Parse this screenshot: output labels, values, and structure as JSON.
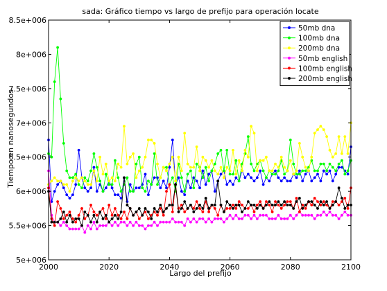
{
  "chart_data": {
    "type": "line",
    "title": "sada: Gráfico tiempo vs largo de prefijo para operación locate",
    "xlabel": "Largo del prefijo",
    "ylabel": "Tiempo en nanosegundos",
    "xlim": [
      2000,
      2100
    ],
    "ylim": [
      5000000,
      8500000
    ],
    "xticks": [
      2000,
      2020,
      2040,
      2060,
      2080,
      2100
    ],
    "yticks": [
      5000000,
      5500000,
      6000000,
      6500000,
      7000000,
      7500000,
      8000000,
      8500000
    ],
    "xtick_labels": [
      "2000",
      "2020",
      "2040",
      "2060",
      "2080",
      "2100"
    ],
    "ytick_labels": [
      "5e+006",
      "5.5e+006",
      "6e+006",
      "6.5e+006",
      "7e+006",
      "7.5e+006",
      "8e+006",
      "8.5e+006"
    ],
    "legend_position": "top-right",
    "grid": false,
    "x": [
      2000,
      2001,
      2002,
      2003,
      2004,
      2005,
      2006,
      2007,
      2008,
      2009,
      2010,
      2011,
      2012,
      2013,
      2014,
      2015,
      2016,
      2017,
      2018,
      2019,
      2020,
      2021,
      2022,
      2023,
      2024,
      2025,
      2026,
      2027,
      2028,
      2029,
      2030,
      2031,
      2032,
      2033,
      2034,
      2035,
      2036,
      2037,
      2038,
      2039,
      2040,
      2041,
      2042,
      2043,
      2044,
      2045,
      2046,
      2047,
      2048,
      2049,
      2050,
      2051,
      2052,
      2053,
      2054,
      2055,
      2056,
      2057,
      2058,
      2059,
      2060,
      2061,
      2062,
      2063,
      2064,
      2065,
      2066,
      2067,
      2068,
      2069,
      2070,
      2071,
      2072,
      2073,
      2074,
      2075,
      2076,
      2077,
      2078,
      2079,
      2080,
      2081,
      2082,
      2083,
      2084,
      2085,
      2086,
      2087,
      2088,
      2089,
      2090,
      2091,
      2092,
      2093,
      2094,
      2095,
      2096,
      2097,
      2098,
      2099,
      2100
    ],
    "series": [
      {
        "name": "50mb dna",
        "color": "#0000ff",
        "values": [
          6750000,
          5850000,
          6000000,
          6100000,
          6150000,
          6050000,
          5950000,
          5900000,
          5950000,
          6100000,
          6600000,
          6200000,
          6050000,
          6000000,
          6050000,
          6350000,
          6000000,
          6100000,
          6000000,
          6050000,
          6150000,
          6050000,
          5950000,
          5950000,
          5900000,
          6200000,
          5850000,
          6100000,
          6000000,
          6050000,
          6050000,
          6100000,
          6250000,
          5950000,
          6100000,
          6200000,
          6200000,
          6050000,
          6150000,
          6050000,
          6350000,
          6750000,
          6100000,
          6200000,
          6000000,
          5950000,
          6150000,
          6050000,
          6200000,
          6150000,
          6050000,
          6300000,
          6100000,
          6250000,
          6300000,
          6000000,
          6150000,
          6250000,
          6300000,
          6100000,
          6150000,
          6100000,
          6200000,
          6150000,
          6300000,
          6200000,
          6250000,
          6200000,
          6150000,
          6200000,
          6300000,
          6100000,
          6200000,
          6150000,
          6250000,
          6300000,
          6200000,
          6150000,
          6200000,
          6150000,
          6150000,
          6250000,
          6200000,
          6300000,
          6150000,
          6250000,
          6300000,
          6150000,
          6200000,
          6250000,
          6150000,
          6300000,
          6250000,
          6300000,
          6150000,
          6250000,
          6350000,
          6350000,
          6300000,
          6250000,
          6650000
        ]
      },
      {
        "name": "100mb dna",
        "color": "#00ff00",
        "values": [
          6550000,
          6500000,
          7600000,
          8100000,
          7350000,
          6700000,
          6300000,
          6200000,
          6200000,
          6250000,
          6100000,
          6050000,
          6200000,
          6150000,
          6300000,
          6550000,
          6350000,
          6150000,
          6000000,
          6250000,
          6100000,
          6100000,
          6450000,
          6200000,
          6000000,
          6100000,
          6200000,
          6000000,
          6000000,
          6400000,
          6500000,
          6050000,
          6000000,
          6150000,
          6100000,
          6550000,
          6100000,
          6200000,
          6350000,
          6350000,
          6100000,
          6200000,
          6000000,
          6400000,
          6200000,
          6000000,
          6250000,
          6300000,
          6050000,
          6400000,
          6350000,
          6200000,
          6350000,
          6150000,
          6300000,
          6400000,
          6550000,
          6600000,
          6300000,
          6600000,
          6250000,
          6250000,
          6450000,
          6150000,
          6400000,
          6550000,
          6800000,
          6400000,
          6300000,
          6400000,
          6450000,
          6300000,
          6200000,
          6300000,
          6250000,
          6250000,
          6300000,
          6450000,
          6250000,
          6300000,
          6750000,
          6400000,
          6250000,
          6250000,
          6300000,
          6300000,
          6350000,
          6450000,
          6300000,
          6300000,
          6400000,
          6400000,
          6300000,
          6400000,
          6350000,
          6300000,
          6400000,
          6450000,
          6250000,
          6300000,
          6450000
        ]
      },
      {
        "name": "200mb dna",
        "color": "#ffff00",
        "values": [
          6100000,
          6150000,
          6200000,
          6150000,
          6150000,
          6100000,
          6100000,
          6000000,
          6150000,
          6200000,
          6150000,
          6200000,
          6150000,
          6100000,
          6100000,
          6300000,
          6150000,
          6500000,
          6250000,
          6400000,
          6150000,
          6200000,
          6150000,
          6400000,
          6350000,
          6950000,
          6400000,
          6500000,
          6550000,
          6200000,
          6300000,
          6350000,
          6500000,
          6750000,
          6750000,
          6700000,
          6400000,
          6200000,
          6350000,
          6300000,
          6400000,
          6500000,
          6150000,
          6500000,
          6300000,
          6850000,
          6400000,
          6350000,
          6350000,
          6650000,
          6300000,
          6500000,
          6450000,
          6350000,
          6450000,
          6300000,
          6250000,
          6350000,
          6200000,
          6350000,
          6300000,
          6600000,
          6250000,
          6450000,
          6300000,
          6600000,
          6500000,
          6950000,
          6850000,
          6300000,
          6450000,
          6450000,
          6500000,
          6300000,
          6300000,
          6400000,
          6350000,
          6500000,
          6350000,
          6300000,
          6450000,
          6250000,
          6300000,
          6700000,
          6500000,
          6350000,
          6300000,
          6500000,
          6850000,
          6900000,
          6950000,
          6900000,
          6800000,
          6600000,
          6500000,
          6550000,
          6800000,
          6550000,
          6800000,
          6550000,
          7000000
        ]
      },
      {
        "name": "50mb english",
        "color": "#ff00ff",
        "values": [
          6300000,
          5650000,
          5550000,
          5550000,
          5500000,
          5550000,
          5500000,
          5450000,
          5450000,
          5450000,
          5450000,
          5500000,
          5400000,
          5500000,
          5450000,
          5550000,
          5450000,
          5500000,
          5500000,
          5500000,
          5550000,
          5500000,
          5550000,
          5500000,
          5550000,
          5550000,
          5500000,
          5550000,
          5500000,
          5550000,
          5500000,
          5500000,
          5450000,
          5500000,
          5500000,
          5550000,
          5500000,
          5550000,
          5550000,
          5550000,
          5550000,
          5600000,
          5550000,
          5550000,
          5550000,
          5500000,
          5600000,
          5550000,
          5600000,
          5550000,
          5600000,
          5600000,
          5550000,
          5600000,
          5550000,
          5600000,
          5600000,
          5600000,
          5550000,
          5600000,
          5650000,
          5600000,
          5650000,
          5600000,
          5600000,
          5650000,
          5650000,
          5600000,
          5650000,
          5600000,
          5650000,
          5650000,
          5650000,
          5600000,
          5600000,
          5600000,
          5650000,
          5600000,
          5600000,
          5600000,
          5650000,
          5600000,
          5650000,
          5700000,
          5650000,
          5650000,
          5650000,
          5650000,
          5600000,
          5650000,
          5650000,
          5700000,
          5650000,
          5700000,
          5650000,
          5650000,
          5600000,
          5650000,
          5700000,
          5650000,
          5650000
        ]
      },
      {
        "name": "100mb english",
        "color": "#ff0000",
        "values": [
          6050000,
          5600000,
          5500000,
          5850000,
          5750000,
          5600000,
          5650000,
          5700000,
          5600000,
          5550000,
          5650000,
          5750000,
          5600000,
          5650000,
          5800000,
          5700000,
          5650000,
          5700000,
          5750000,
          5600000,
          5800000,
          5650000,
          5750000,
          5650000,
          5600000,
          5700000,
          5600000,
          5750000,
          5650000,
          5700000,
          5600000,
          5650000,
          5700000,
          5600000,
          5650000,
          5700000,
          5650000,
          5750000,
          5650000,
          6000000,
          6100000,
          5700000,
          6100000,
          5750000,
          5800000,
          5700000,
          5750000,
          5800000,
          5750000,
          5850000,
          5750000,
          5700000,
          5850000,
          5700000,
          5800000,
          5750000,
          5650000,
          5800000,
          5700000,
          5750000,
          5750000,
          5800000,
          5750000,
          5850000,
          5800000,
          5750000,
          5750000,
          5800000,
          5700000,
          5800000,
          5850000,
          5750000,
          5850000,
          5800000,
          5700000,
          5850000,
          5800000,
          5750000,
          5800000,
          5850000,
          5850000,
          5750000,
          5900000,
          5700000,
          5800000,
          5750000,
          5850000,
          5800000,
          5900000,
          5850000,
          5800000,
          5850000,
          5800000,
          5750000,
          5850000,
          5850000,
          5800000,
          5850000,
          5900000,
          5750000,
          6050000
        ]
      },
      {
        "name": "200mb english",
        "color": "#000000",
        "values": [
          6000000,
          5550000,
          5550000,
          5550000,
          5600000,
          5700000,
          5550000,
          5650000,
          5550000,
          5600000,
          5600000,
          5500000,
          5700000,
          5650000,
          5550000,
          5650000,
          5550000,
          5700000,
          5600000,
          5650000,
          5550000,
          5600000,
          5650000,
          5600000,
          5700000,
          6200000,
          5800000,
          5750000,
          5650000,
          5700000,
          5750000,
          5650000,
          5750000,
          5700000,
          5600000,
          5750000,
          5700000,
          5800000,
          5700000,
          5750000,
          5800000,
          5800000,
          6100000,
          5700000,
          5750000,
          5850000,
          5750000,
          5800000,
          5700000,
          5750000,
          5800000,
          5750000,
          5900000,
          5750000,
          5800000,
          5800000,
          6150000,
          5800000,
          5700000,
          5850000,
          5800000,
          5750000,
          5800000,
          5800000,
          5700000,
          5750000,
          5850000,
          5800000,
          5800000,
          5750000,
          5800000,
          5750000,
          5800000,
          5850000,
          5800000,
          5800000,
          5850000,
          5800000,
          5850000,
          5800000,
          5800000,
          5750000,
          5850000,
          5900000,
          5750000,
          5800000,
          5850000,
          5850000,
          5800000,
          5750000,
          5850000,
          5800000,
          5850000,
          5750000,
          5800000,
          5850000,
          6050000,
          5900000,
          5750000,
          5800000,
          5800000
        ]
      }
    ]
  }
}
